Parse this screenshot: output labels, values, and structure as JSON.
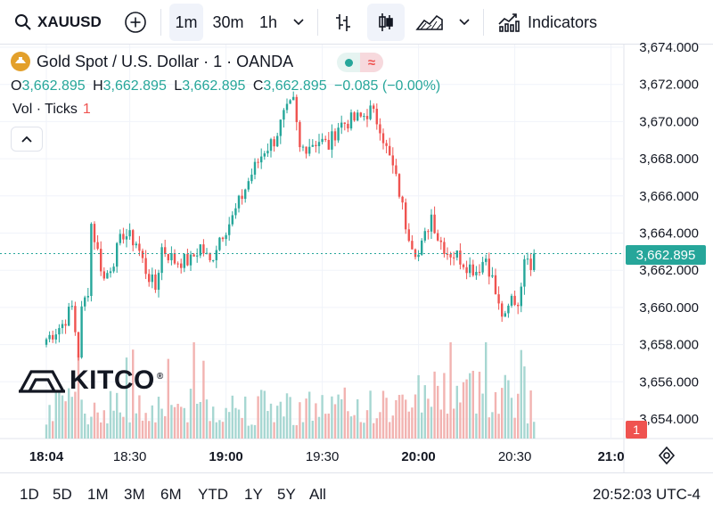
{
  "toolbar": {
    "symbol": "XAUUSD",
    "intervals": [
      "1m",
      "30m",
      "1h"
    ],
    "active_interval": "1m",
    "indicators_label": "Indicators"
  },
  "legend": {
    "title": "Gold Spot / U.S. Dollar · 1 · OANDA",
    "o_label": "O",
    "o_value": "3,662.895",
    "h_label": "H",
    "h_value": "3,662.895",
    "l_label": "L",
    "l_value": "3,662.895",
    "c_label": "C",
    "c_value": "3,662.895",
    "change": "−0.085 (−0.00%)",
    "vol_label": "Vol · Ticks",
    "vol_value": "1"
  },
  "brand": {
    "name": "KITCO",
    "mark": "®"
  },
  "price_tag": "3,662.895",
  "volume_tag": "1",
  "ranges": [
    "1D",
    "5D",
    "1M",
    "3M",
    "6M",
    "YTD",
    "1Y",
    "5Y",
    "All"
  ],
  "clock": "20:52:03 UTC-4",
  "colors": {
    "up": "#26a69a",
    "down": "#ef5350",
    "up_vol": "#a7d7d2",
    "down_vol": "#f2b3b1"
  },
  "chart_data": {
    "type": "candlestick",
    "interval": "1m",
    "y_axis_ticks": [
      "3,674.000",
      "3,672.000",
      "3,670.000",
      "3,668.000",
      "3,666.000",
      "3,664.000",
      "3,662.000",
      "3,660.000",
      "3,658.000",
      "3,656.000",
      "3,654.000"
    ],
    "y_tick_values": [
      3674,
      3672,
      3670,
      3668,
      3666,
      3664,
      3662,
      3660,
      3658,
      3656,
      3654
    ],
    "ylim": [
      3653.2,
      3675.0
    ],
    "x_axis_ticks": [
      {
        "label": "18:04",
        "minute": 0,
        "bold": true
      },
      {
        "label": "18:30",
        "minute": 26,
        "bold": false
      },
      {
        "label": "19:00",
        "minute": 56,
        "bold": true
      },
      {
        "label": "19:30",
        "minute": 86,
        "bold": false
      },
      {
        "label": "20:00",
        "minute": 116,
        "bold": true
      },
      {
        "label": "20:30",
        "minute": 146,
        "bold": false
      },
      {
        "label": "21:0",
        "minute": 176,
        "bold": true
      }
    ],
    "last_price": 3662.895,
    "close_path": [
      [
        0,
        3658.3
      ],
      [
        5,
        3659.1
      ],
      [
        8,
        3660.0
      ],
      [
        10,
        3657.5
      ],
      [
        11,
        3659.8
      ],
      [
        13,
        3661.0
      ],
      [
        14,
        3664.5
      ],
      [
        16,
        3663.0
      ],
      [
        18,
        3661.5
      ],
      [
        21,
        3662.6
      ],
      [
        24,
        3664.0
      ],
      [
        28,
        3663.5
      ],
      [
        31,
        3662.0
      ],
      [
        34,
        3661.0
      ],
      [
        36,
        3663.2
      ],
      [
        40,
        3662.5
      ],
      [
        45,
        3662.5
      ],
      [
        48,
        3663.3
      ],
      [
        51,
        3662.4
      ],
      [
        54,
        3663.8
      ],
      [
        58,
        3664.8
      ],
      [
        61,
        3666.0
      ],
      [
        64,
        3667.2
      ],
      [
        68,
        3668.5
      ],
      [
        71,
        3669.0
      ],
      [
        74,
        3670.3
      ],
      [
        77,
        3671.0
      ],
      [
        79,
        3668.5
      ],
      [
        82,
        3668.8
      ],
      [
        85,
        3669.0
      ],
      [
        88,
        3668.7
      ],
      [
        91,
        3669.8
      ],
      [
        94,
        3670.0
      ],
      [
        98,
        3670.2
      ],
      [
        101,
        3670.6
      ],
      [
        104,
        3669.8
      ],
      [
        106,
        3668.5
      ],
      [
        108,
        3667.5
      ],
      [
        110,
        3666.2
      ],
      [
        112,
        3664.5
      ],
      [
        114,
        3663.5
      ],
      [
        116,
        3662.8
      ],
      [
        118,
        3663.8
      ],
      [
        120,
        3665.0
      ],
      [
        122,
        3663.8
      ],
      [
        125,
        3663.0
      ],
      [
        128,
        3662.8
      ],
      [
        131,
        3662.3
      ],
      [
        134,
        3662.0
      ],
      [
        137,
        3662.7
      ],
      [
        139,
        3661.5
      ],
      [
        141,
        3660.0
      ],
      [
        143,
        3659.3
      ],
      [
        145,
        3660.5
      ],
      [
        147,
        3660.2
      ],
      [
        148,
        3661.5
      ],
      [
        150,
        3663.0
      ],
      [
        151,
        3662.4
      ],
      [
        152,
        3662.9
      ]
    ],
    "volume_range": [
      0,
      45
    ]
  }
}
